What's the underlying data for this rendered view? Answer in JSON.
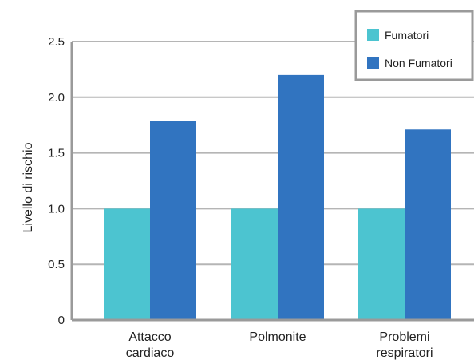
{
  "chart_data": {
    "type": "bar",
    "categories": [
      [
        "Attacco",
        "cardiaco"
      ],
      [
        "Polmonite"
      ],
      [
        "Problemi",
        "respiratori"
      ]
    ],
    "series": [
      {
        "name": "Fumatori",
        "values": [
          1.0,
          1.0,
          1.0
        ],
        "color": "#4cc4d0"
      },
      {
        "name": "Non Fumatori",
        "values": [
          1.79,
          2.2,
          1.71
        ],
        "color": "#3174c0"
      }
    ],
    "ylabel": "Livello di rischio",
    "xlabel": "",
    "ylim": [
      0,
      2.5
    ],
    "yticks": [
      {
        "value": 0,
        "label": "0"
      },
      {
        "value": 0.5,
        "label": "0.5"
      },
      {
        "value": 1.0,
        "label": "1.0"
      },
      {
        "value": 1.5,
        "label": "1.5"
      },
      {
        "value": 2.0,
        "label": "2.0"
      },
      {
        "value": 2.5,
        "label": "2.5"
      }
    ],
    "grid": true,
    "legend_position": "top-right",
    "grid_color": "#b5b5b5",
    "axis_color": "#9a9a9a"
  }
}
